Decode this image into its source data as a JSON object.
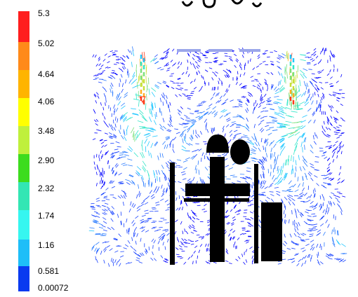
{
  "legend": {
    "labels": [
      "5.3",
      "5.02",
      "4.64",
      "4.06",
      "3.48",
      "2.90",
      "2.32",
      "1.74",
      "1.16",
      "0.581",
      "0.00072"
    ],
    "colors": [
      "#ff1e1e",
      "#ff8a1a",
      "#ffb400",
      "#ffff00",
      "#bff03c",
      "#3ddc1e",
      "#33e6b4",
      "#36f6f0",
      "#1ebef8",
      "#0a3af0",
      "#0000ff"
    ]
  },
  "figure": {
    "description_visible": false,
    "vector_palette": [
      "#0000ff",
      "#1a44ff",
      "#2a7bff",
      "#22c7ff",
      "#33e6c8",
      "#7ce07a",
      "#c8e03a",
      "#ffb020",
      "#ff3a1a"
    ],
    "obstacle_color": "#000000",
    "vent_color": "#9aa6ea"
  }
}
